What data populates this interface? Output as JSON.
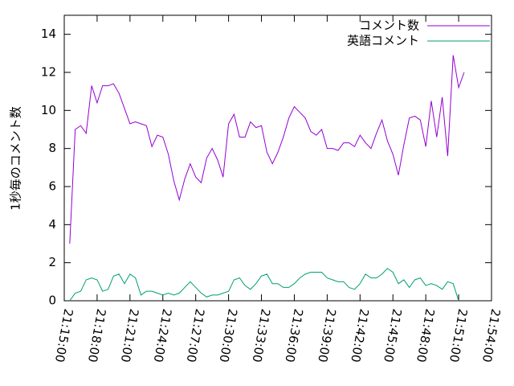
{
  "chart_data": {
    "type": "line",
    "y_label": "1秒毎のコメント数",
    "x": [
      "21:15:30",
      "21:16:00",
      "21:16:30",
      "21:17:00",
      "21:17:30",
      "21:18:00",
      "21:18:30",
      "21:19:00",
      "21:19:30",
      "21:20:00",
      "21:20:30",
      "21:21:00",
      "21:21:30",
      "21:22:00",
      "21:22:30",
      "21:23:00",
      "21:23:30",
      "21:24:00",
      "21:24:30",
      "21:25:00",
      "21:25:30",
      "21:26:00",
      "21:26:30",
      "21:27:00",
      "21:27:30",
      "21:28:00",
      "21:28:30",
      "21:29:00",
      "21:29:30",
      "21:30:00",
      "21:30:30",
      "21:31:00",
      "21:31:30",
      "21:32:00",
      "21:32:30",
      "21:33:00",
      "21:33:30",
      "21:34:00",
      "21:34:30",
      "21:35:00",
      "21:35:30",
      "21:36:00",
      "21:36:30",
      "21:37:00",
      "21:37:30",
      "21:38:00",
      "21:38:30",
      "21:39:00",
      "21:39:30",
      "21:40:00",
      "21:40:30",
      "21:41:00",
      "21:41:30",
      "21:42:00",
      "21:42:30",
      "21:43:00",
      "21:43:30",
      "21:44:00",
      "21:44:30",
      "21:45:00",
      "21:45:30",
      "21:46:00",
      "21:46:30",
      "21:47:00",
      "21:47:30",
      "21:48:00",
      "21:48:30",
      "21:49:00",
      "21:49:30",
      "21:50:00",
      "21:50:30",
      "21:51:00",
      "21:51:30"
    ],
    "series": [
      {
        "name": "コメント数",
        "color": "#9400d3",
        "values": [
          3.0,
          9.0,
          9.2,
          8.8,
          11.3,
          10.4,
          11.3,
          11.3,
          11.4,
          10.9,
          10.1,
          9.3,
          9.4,
          9.3,
          9.2,
          8.1,
          8.7,
          8.6,
          7.7,
          6.3,
          5.3,
          6.4,
          7.2,
          6.5,
          6.2,
          7.5,
          8.0,
          7.4,
          6.5,
          9.3,
          9.8,
          8.6,
          8.6,
          9.4,
          9.1,
          9.2,
          7.8,
          7.2,
          7.8,
          8.6,
          9.6,
          10.2,
          9.9,
          9.6,
          8.9,
          8.7,
          9.0,
          8.0,
          8.0,
          7.9,
          8.3,
          8.3,
          8.1,
          8.7,
          8.3,
          8.0,
          8.8,
          9.5,
          8.4,
          7.7,
          6.6,
          8.2,
          9.6,
          9.7,
          9.5,
          8.1,
          10.5,
          8.6,
          10.7,
          7.6,
          12.9,
          11.2,
          12.0
        ]
      },
      {
        "name": "英語コメント",
        "color": "#009e73",
        "values": [
          0.0,
          0.4,
          0.5,
          1.1,
          1.2,
          1.1,
          0.5,
          0.6,
          1.3,
          1.4,
          0.9,
          1.4,
          1.2,
          0.3,
          0.5,
          0.5,
          0.4,
          0.3,
          0.4,
          0.3,
          0.4,
          0.7,
          1.0,
          0.7,
          0.4,
          0.2,
          0.3,
          0.3,
          0.4,
          0.5,
          1.1,
          1.2,
          0.8,
          0.6,
          0.9,
          1.3,
          1.4,
          0.9,
          0.9,
          0.7,
          0.7,
          0.9,
          1.2,
          1.4,
          1.5,
          1.5,
          1.5,
          1.2,
          1.1,
          1.0,
          1.0,
          0.7,
          0.6,
          0.9,
          1.4,
          1.2,
          1.2,
          1.4,
          1.7,
          1.5,
          0.9,
          1.1,
          0.7,
          1.1,
          1.2,
          0.8,
          0.9,
          0.8,
          0.6,
          1.0,
          0.9,
          0.0,
          null
        ]
      }
    ],
    "xlim": [
      "21:15:00",
      "21:54:00"
    ],
    "xticks": [
      "21:15:00",
      "21:18:00",
      "21:21:00",
      "21:24:00",
      "21:27:00",
      "21:30:00",
      "21:33:00",
      "21:36:00",
      "21:39:00",
      "21:42:00",
      "21:45:00",
      "21:48:00",
      "21:51:00",
      "21:54:00"
    ],
    "ylim": [
      0,
      15
    ],
    "yticks": [
      0,
      2,
      4,
      6,
      8,
      10,
      12,
      14
    ],
    "legend": "top-right"
  }
}
